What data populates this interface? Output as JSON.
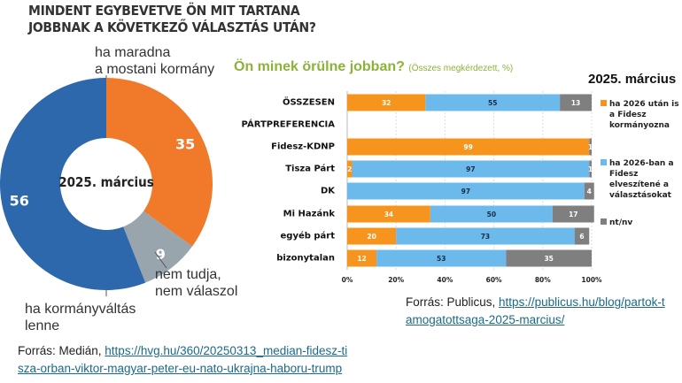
{
  "chart_data": [
    {
      "type": "pie",
      "title": "MINDENT EGYBEVETVE ÖN MIT TARTANA JOBBNAK A KÖVETKEZŐ VÁLASZTÁS UTÁN?",
      "center_label": "2025. március",
      "slices": [
        {
          "label": "ha maradna a mostani kormány",
          "value": 35,
          "color": "#f07a2a"
        },
        {
          "label": "nem tudja, nem válaszol",
          "value": 9,
          "color": "#98a5ad"
        },
        {
          "label": "ha kormányváltás lenne",
          "value": 56,
          "color": "#2c68ab"
        }
      ]
    },
    {
      "type": "bar",
      "stacked": true,
      "orientation": "horizontal",
      "title": "Ön minek örülne jobban?",
      "subtitle": "(Összes megkérdezett, %)",
      "date_label": "2025. március",
      "categories": [
        "ÖSSZESEN",
        "PÁRTPREFERENCIA",
        "Fidesz-KDNP",
        "Tisza Párt",
        "DK",
        "Mi Hazánk",
        "egyéb párt",
        "bizonytalan"
      ],
      "series": [
        {
          "name": "ha 2026 után is a Fidesz kormányozna",
          "color": "#f7941d",
          "values": [
            32,
            null,
            99,
            2,
            0,
            34,
            20,
            12
          ]
        },
        {
          "name": "ha 2026-ban a Fidesz elveszítené a választásokat",
          "color": "#6cb9ec",
          "values": [
            55,
            null,
            0,
            97,
            97,
            50,
            73,
            53
          ]
        },
        {
          "name": "nt/nv",
          "color": "#7f7f7f",
          "values": [
            13,
            null,
            1,
            1,
            4,
            17,
            6,
            35
          ]
        }
      ],
      "xticks": [
        "0%",
        "20%",
        "40%",
        "60%",
        "80%",
        "100%"
      ],
      "xlim": [
        0,
        100
      ],
      "grid": true,
      "legend": "right"
    }
  ],
  "labels": {
    "slice0": "ha maradna\na mostani kormány",
    "slice1": "nem tudja,\nnem válaszol",
    "slice2": "ha kormányváltás\nlenne"
  },
  "sources": {
    "left_prefix": "Forrás: Medián, ",
    "left_link": "https://hvg.hu/360/20250313_median-fidesz-tisza-orban-viktor-magyar-peter-eu-nato-ukrajna-haboru-trump",
    "right_prefix": "Forrás: Publicus, ",
    "right_link": "https://publicus.hu/blog/partok-tamogatottsaga-2025-marcius/"
  }
}
